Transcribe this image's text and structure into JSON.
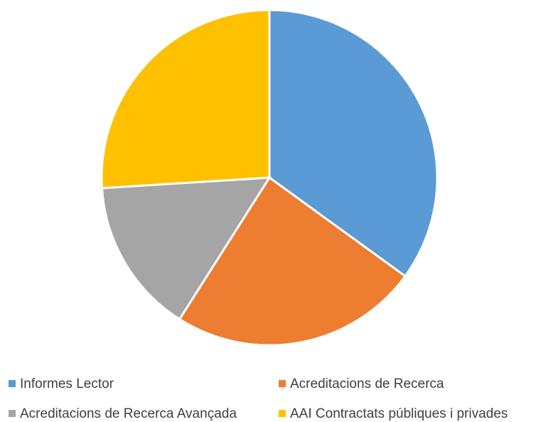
{
  "chart_data": {
    "type": "pie",
    "categories": [
      "Informes Lector",
      "Acreditacions de Recerca",
      "Acreditacions de Recerca Avançada",
      "AAI Contractats públiques i privades"
    ],
    "values": [
      35,
      24,
      15,
      26
    ],
    "colors": [
      "#5b9bd5",
      "#ed7d31",
      "#a5a5a5",
      "#ffc000"
    ],
    "legend": "bottom"
  }
}
